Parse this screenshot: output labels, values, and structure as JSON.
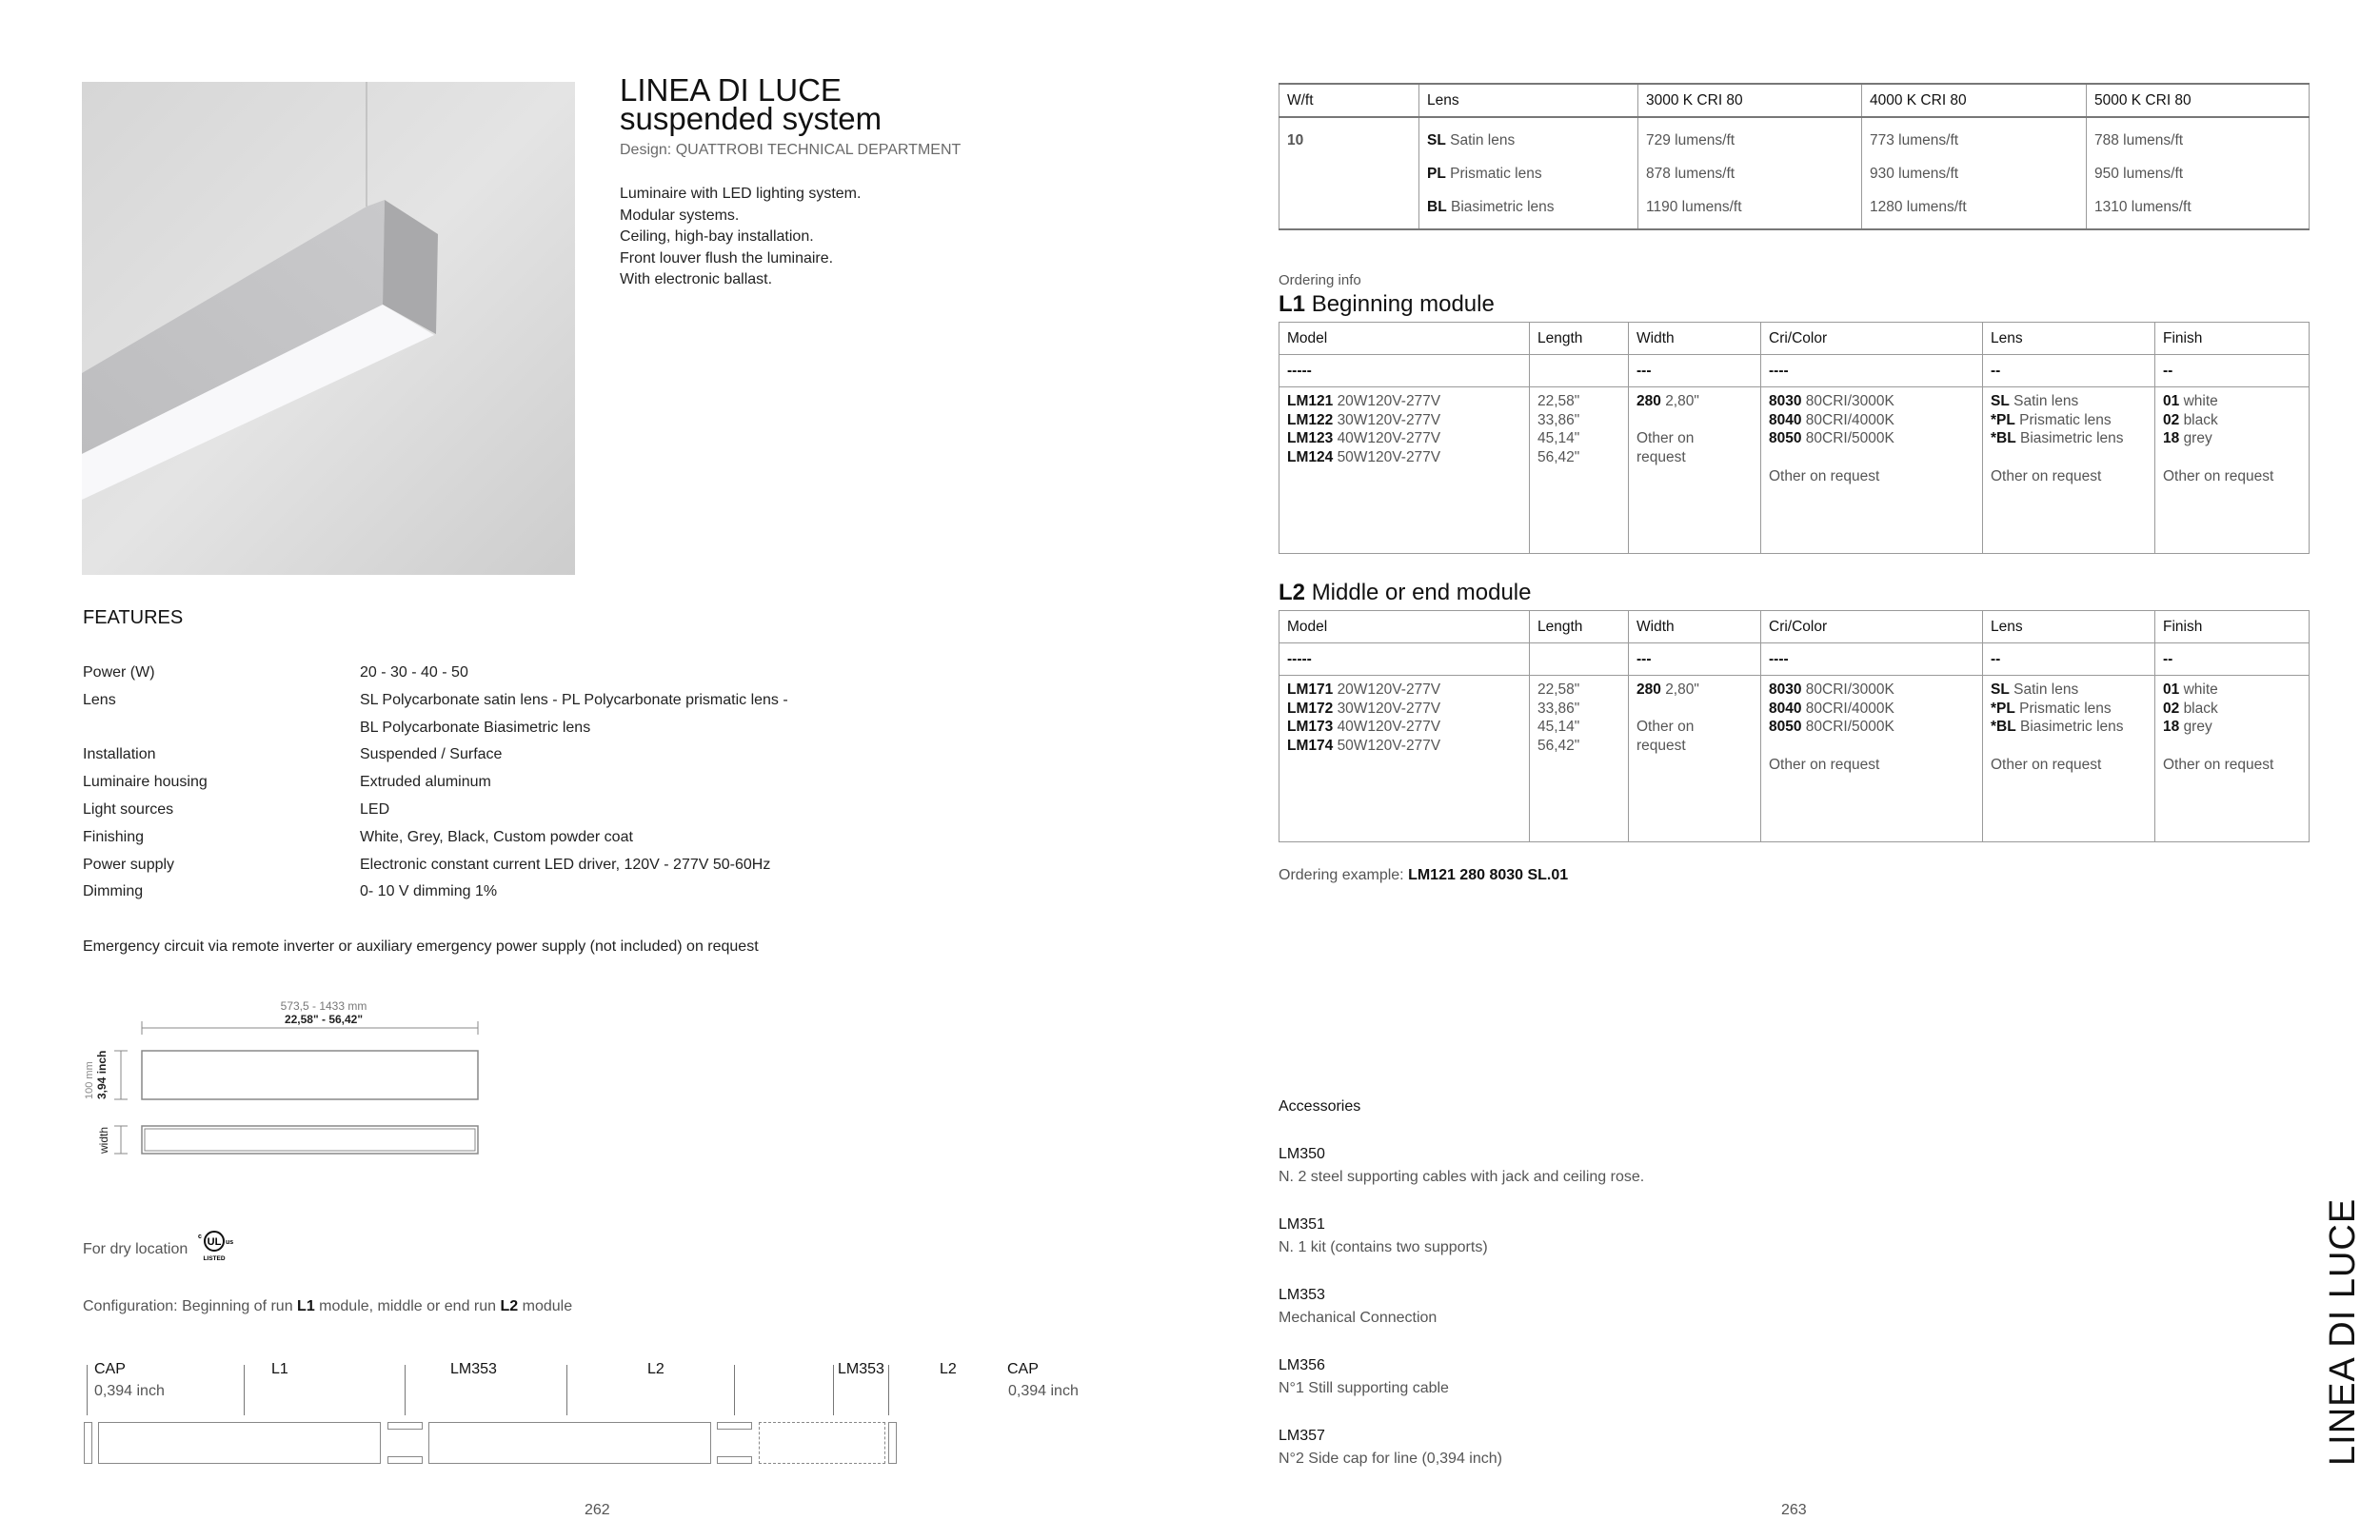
{
  "left_page": {
    "title_line1": "LINEA DI LUCE",
    "title_line2": "suspended system",
    "design": "Design: QUATTROBI TECHNICAL DEPARTMENT",
    "description": [
      "Luminaire with LED lighting system.",
      "Modular systems.",
      "Ceiling, high-bay installation.",
      "Front louver flush the luminaire.",
      "With electronic ballast."
    ],
    "features_heading": "FEATURES",
    "features": [
      {
        "label": "Power (W)",
        "value": "20 - 30 - 40 - 50"
      },
      {
        "label": "Lens",
        "value": "SL Polycarbonate satin lens - PL Polycarbonate prismatic lens -"
      },
      {
        "label": "",
        "value": "BL Polycarbonate Biasimetric lens"
      },
      {
        "label": "Installation",
        "value": "Suspended / Surface"
      },
      {
        "label": "Luminaire housing",
        "value": "Extruded aluminum"
      },
      {
        "label": "Light sources",
        "value": "LED"
      },
      {
        "label": "Finishing",
        "value": "White, Grey, Black, Custom powder coat"
      },
      {
        "label": "Power supply",
        "value": "Electronic constant current LED driver, 120V - 277V 50-60Hz"
      },
      {
        "label": "Dimming",
        "value": "0- 10 V dimming 1%"
      }
    ],
    "emergency": "Emergency circuit via remote inverter or auxiliary emergency power supply (not included) on request",
    "dimensions": {
      "length_mm": "573,5 - 1433 mm",
      "length_in": "22,58\" - 56,42\"",
      "height_mm": "100 mm",
      "height_in": "3,94 inch",
      "width_label": "width"
    },
    "dry_location": "For dry location",
    "ul_logo": {
      "c": "c",
      "ul": "UL",
      "us": "us",
      "listed": "LISTED"
    },
    "configuration": {
      "prefix": "Configuration: Beginning of run ",
      "l1": "L1",
      "middle": " module, middle or end run ",
      "l2": "L2",
      "suffix": " module",
      "labels": [
        "CAP",
        "L1",
        "LM353",
        "L2",
        "LM353",
        "L2",
        "CAP"
      ],
      "cap_size_left": "0,394 inch",
      "cap_size_right": "0,394 inch"
    },
    "page_number": "262"
  },
  "right_page": {
    "lumens_table": {
      "headers": [
        "W/ft",
        "Lens",
        "3000 K CRI 80",
        "4000 K CRI 80",
        "5000 K CRI 80"
      ],
      "wattage": "10",
      "lenses": [
        {
          "code": "SL",
          "name": "Satin lens"
        },
        {
          "code": "PL",
          "name": "Prismatic lens"
        },
        {
          "code": "BL",
          "name": "Biasimetric lens"
        }
      ],
      "values": [
        [
          "729 lumens/ft",
          "878 lumens/ft",
          "1190 lumens/ft"
        ],
        [
          "773 lumens/ft",
          "930 lumens/ft",
          "1280 lumens/ft"
        ],
        [
          "788 lumens/ft",
          "950 lumens/ft",
          "1310 lumens/ft"
        ]
      ]
    },
    "ordering_info": "Ordering info",
    "modules": [
      {
        "code": "L1",
        "title": "Beginning module",
        "headers": [
          "Model",
          "Length",
          "Width",
          "Cri/Color",
          "Lens",
          "Finish"
        ],
        "dashes": [
          "-----",
          "",
          "---",
          "----",
          "--",
          "--"
        ],
        "models": [
          {
            "code": "LM121",
            "text": "20W120V-277V"
          },
          {
            "code": "LM122",
            "text": "30W120V-277V"
          },
          {
            "code": "LM123",
            "text": "40W120V-277V"
          },
          {
            "code": "LM124",
            "text": "50W120V-277V"
          }
        ],
        "lengths": [
          "22,58\"",
          "33,86\"",
          "45,14\"",
          "56,42\""
        ],
        "width": {
          "code": "280",
          "text": "2,80\"",
          "other": "Other on request"
        },
        "colors": [
          {
            "code": "8030",
            "text": "80CRI/3000K"
          },
          {
            "code": "8040",
            "text": "80CRI/4000K"
          },
          {
            "code": "8050",
            "text": "80CRI/5000K"
          }
        ],
        "lenses": [
          {
            "code": "SL",
            "text": "Satin lens"
          },
          {
            "code": "*PL",
            "text": " Prismatic lens"
          },
          {
            "code": "*BL",
            "text": " Biasimetric lens"
          }
        ],
        "finishes": [
          {
            "code": "01",
            "text": "white"
          },
          {
            "code": "02",
            "text": "black"
          },
          {
            "code": "18",
            "text": "grey"
          }
        ],
        "other": "Other on request"
      },
      {
        "code": "L2",
        "title": "Middle or end module",
        "headers": [
          "Model",
          "Length",
          "Width",
          "Cri/Color",
          "Lens",
          "Finish"
        ],
        "dashes": [
          "-----",
          "",
          "---",
          "----",
          "--",
          "--"
        ],
        "models": [
          {
            "code": "LM171",
            "text": "20W120V-277V"
          },
          {
            "code": "LM172",
            "text": "30W120V-277V"
          },
          {
            "code": "LM173",
            "text": "40W120V-277V"
          },
          {
            "code": "LM174",
            "text": "50W120V-277V"
          }
        ],
        "lengths": [
          "22,58\"",
          "33,86\"",
          "45,14\"",
          "56,42\""
        ],
        "width": {
          "code": "280",
          "text": "2,80\"",
          "other": "Other on request"
        },
        "colors": [
          {
            "code": "8030",
            "text": "80CRI/3000K"
          },
          {
            "code": "8040",
            "text": "80CRI/4000K"
          },
          {
            "code": "8050",
            "text": "80CRI/5000K"
          }
        ],
        "lenses": [
          {
            "code": "SL",
            "text": "Satin lens"
          },
          {
            "code": "*PL",
            "text": " Prismatic lens"
          },
          {
            "code": "*BL",
            "text": " Biasimetric lens"
          }
        ],
        "finishes": [
          {
            "code": "01",
            "text": "white"
          },
          {
            "code": "02",
            "text": "black"
          },
          {
            "code": "18",
            "text": "grey"
          }
        ],
        "other": "Other on request"
      }
    ],
    "ordering_example_label": "Ordering example: ",
    "ordering_example_value": "LM121 280 8030 SL.01",
    "accessories_heading": "Accessories",
    "accessories": [
      {
        "code": "LM350",
        "desc": "N. 2 steel supporting cables with jack and ceiling rose."
      },
      {
        "code": "LM351",
        "desc": "N. 1 kit (contains two supports)"
      },
      {
        "code": "LM353",
        "desc": "Mechanical Connection"
      },
      {
        "code": "LM356",
        "desc": "N°1 Still supporting cable"
      },
      {
        "code": "LM357",
        "desc": "N°2 Side cap for line (0,394 inch)"
      }
    ],
    "side_title": "LINEA DI LUCE",
    "page_number": "263"
  }
}
